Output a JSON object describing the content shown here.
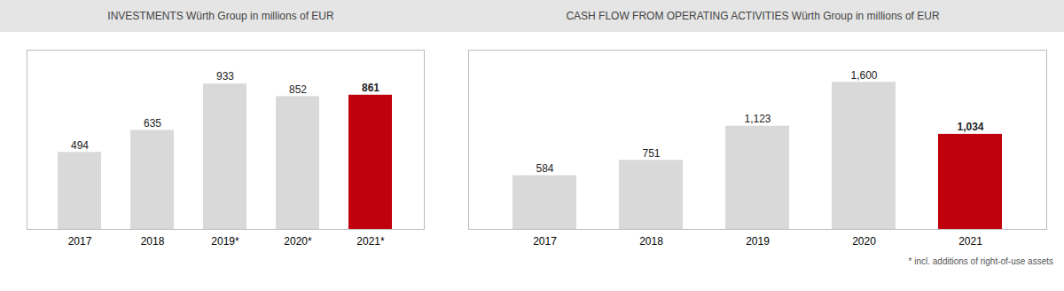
{
  "chart_data": [
    {
      "type": "bar",
      "title": "INVESTMENTS  Würth Group in millions of EUR",
      "categories": [
        "2017",
        "2018",
        "2019*",
        "2020*",
        "2021*"
      ],
      "values": [
        494,
        635,
        933,
        852,
        861
      ],
      "colors": [
        "#d9d9d9",
        "#d9d9d9",
        "#d9d9d9",
        "#d9d9d9",
        "#c0000c"
      ],
      "ylim": [
        0,
        1150
      ],
      "data_labels": true,
      "tick_labels": "x",
      "grid": false
    },
    {
      "type": "bar",
      "title": "CASH FLOW FROM OPERATING ACTIVITIES  Würth Group in millions of EUR",
      "categories": [
        "2017",
        "2018",
        "2019",
        "2020",
        "2021"
      ],
      "values": [
        584,
        751,
        1123,
        1600,
        1034
      ],
      "value_labels": [
        "584",
        "751",
        "1,123",
        "1,600",
        "1,034"
      ],
      "colors": [
        "#d9d9d9",
        "#d9d9d9",
        "#d9d9d9",
        "#d9d9d9",
        "#c0000c"
      ],
      "ylim": [
        0,
        1950
      ],
      "data_labels": true,
      "tick_labels": "x",
      "grid": false,
      "annotations": [
        "* incl. additions of right-of-use assets"
      ]
    }
  ]
}
